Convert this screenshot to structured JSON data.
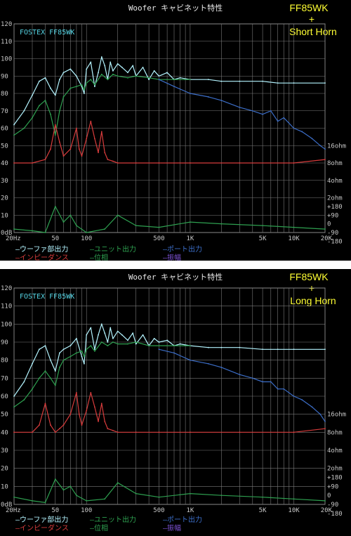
{
  "chart_data": [
    {
      "type": "line",
      "title": "Woofer キャビネット特性",
      "brand_label": "FOSTEX FF85WK",
      "badge": [
        "FF85WK",
        "+",
        "Short Horn"
      ],
      "xscale": "log",
      "xlim": [
        20,
        20000
      ],
      "ylim": [
        0,
        120
      ],
      "grid": true,
      "legend_position": "bottom",
      "x_ticks": [
        {
          "value": 20,
          "label": "20Hz"
        },
        {
          "value": 50,
          "label": "50"
        },
        {
          "value": 100,
          "label": "100"
        },
        {
          "value": 500,
          "label": "500"
        },
        {
          "value": 1000,
          "label": "1K"
        },
        {
          "value": 5000,
          "label": "5K"
        },
        {
          "value": 10000,
          "label": "10K"
        },
        {
          "value": 20000,
          "label": "20K"
        }
      ],
      "y_ticks_left": [
        {
          "value": 0,
          "label": "0dB"
        },
        {
          "value": 10,
          "label": "10"
        },
        {
          "value": 20,
          "label": "20"
        },
        {
          "value": 30,
          "label": "30"
        },
        {
          "value": 40,
          "label": "40"
        },
        {
          "value": 50,
          "label": "50"
        },
        {
          "value": 60,
          "label": "60"
        },
        {
          "value": 70,
          "label": "70"
        },
        {
          "value": 80,
          "label": "80"
        },
        {
          "value": 90,
          "label": "90"
        },
        {
          "value": 100,
          "label": "100"
        },
        {
          "value": 110,
          "label": "110"
        },
        {
          "value": 120,
          "label": "120"
        }
      ],
      "y_ticks_right": [
        {
          "value": 50,
          "label": "16ohm"
        },
        {
          "value": 40,
          "label": "8ohm"
        },
        {
          "value": 30,
          "label": "4ohm"
        },
        {
          "value": 20,
          "label": "2ohm"
        },
        {
          "value": 15,
          "label": "+180"
        },
        {
          "value": 10,
          "label": "+90"
        },
        {
          "value": 5,
          "label": "0"
        },
        {
          "value": 0,
          "label": "-90"
        },
        {
          "value": -5,
          "label": "-180"
        }
      ],
      "legend": [
        {
          "label": "ウーファ部出力",
          "color": "#b4f4ff"
        },
        {
          "label": "ユニット出力",
          "color": "#2ea050"
        },
        {
          "label": "ポート出力",
          "color": "#3c6ec8"
        },
        {
          "label": "インピーダンス",
          "color": "#d83c3c"
        },
        {
          "label": "位相",
          "color": "#2ea050"
        },
        {
          "label": "振幅",
          "color": "#7a50d0"
        }
      ],
      "series": [
        {
          "name": "ウーファ部出力",
          "color": "#b4f4ff",
          "x": [
            20,
            25,
            30,
            35,
            40,
            45,
            50,
            55,
            60,
            70,
            80,
            90,
            95,
            100,
            110,
            120,
            130,
            140,
            150,
            160,
            170,
            180,
            200,
            220,
            250,
            280,
            300,
            350,
            400,
            450,
            500,
            600,
            700,
            800,
            1000,
            1500,
            2000,
            3000,
            5000,
            7000,
            10000,
            20000
          ],
          "y": [
            62,
            70,
            79,
            87,
            89,
            83,
            79,
            88,
            92,
            94,
            90,
            84,
            80,
            94,
            98,
            84,
            92,
            101,
            96,
            88,
            98,
            93,
            97,
            95,
            92,
            96,
            90,
            95,
            88,
            93,
            90,
            92,
            88,
            89,
            88,
            88,
            87,
            87,
            87,
            86,
            86,
            86
          ]
        },
        {
          "name": "ユニット出力",
          "color": "#2ea050",
          "x": [
            20,
            25,
            30,
            35,
            40,
            45,
            50,
            55,
            60,
            70,
            80,
            90,
            95,
            100,
            110,
            120,
            140,
            160,
            180,
            200,
            250,
            300,
            400,
            500,
            700,
            1000
          ],
          "y": [
            56,
            60,
            66,
            73,
            76,
            68,
            56,
            70,
            78,
            83,
            84,
            85,
            82,
            86,
            88,
            85,
            91,
            88,
            91,
            90,
            89,
            90,
            89,
            88,
            88,
            88
          ]
        },
        {
          "name": "ポート出力",
          "color": "#3c6ec8",
          "x": [
            500,
            700,
            1000,
            1500,
            2000,
            3000,
            4000,
            5000,
            6000,
            7000,
            8000,
            10000,
            12000,
            15000,
            18000,
            20000
          ],
          "y": [
            88,
            84,
            80,
            78,
            76,
            72,
            70,
            68,
            70,
            64,
            66,
            60,
            58,
            54,
            50,
            48
          ]
        },
        {
          "name": "インピーダンス",
          "color": "#d83c3c",
          "x": [
            20,
            30,
            40,
            45,
            50,
            55,
            60,
            70,
            80,
            85,
            90,
            100,
            110,
            120,
            130,
            140,
            150,
            160,
            180,
            200,
            300,
            500,
            1000,
            3000,
            10000,
            20000
          ],
          "y": [
            40,
            40,
            42,
            48,
            62,
            52,
            44,
            48,
            60,
            48,
            44,
            54,
            64,
            54,
            46,
            58,
            46,
            42,
            41,
            40,
            40,
            40,
            40,
            40,
            40,
            42
          ]
        },
        {
          "name": "位相",
          "color": "#2ea050",
          "x": [
            20,
            30,
            40,
            50,
            60,
            70,
            80,
            100,
            150,
            200,
            300,
            500,
            1000,
            2000,
            5000,
            10000,
            20000
          ],
          "y": [
            2,
            1,
            0,
            15,
            6,
            10,
            4,
            0,
            2,
            10,
            4,
            3,
            6,
            5,
            4,
            3,
            2
          ]
        },
        {
          "name": "振幅",
          "color": "#7a50d0",
          "x": [],
          "y": []
        }
      ]
    },
    {
      "type": "line",
      "title": "Woofer キャビネット特性",
      "brand_label": "FOSTEX FF85WK",
      "badge": [
        "FF85WK",
        "+",
        "Long Horn"
      ],
      "xscale": "log",
      "xlim": [
        20,
        20000
      ],
      "ylim": [
        0,
        120
      ],
      "grid": true,
      "legend_position": "bottom",
      "x_ticks": [
        {
          "value": 20,
          "label": "20Hz"
        },
        {
          "value": 50,
          "label": "50"
        },
        {
          "value": 100,
          "label": "100"
        },
        {
          "value": 500,
          "label": "500"
        },
        {
          "value": 1000,
          "label": "1K"
        },
        {
          "value": 5000,
          "label": "5K"
        },
        {
          "value": 10000,
          "label": "10K"
        },
        {
          "value": 20000,
          "label": "20K"
        }
      ],
      "y_ticks_left": [
        {
          "value": 0,
          "label": "0dB"
        },
        {
          "value": 10,
          "label": "10"
        },
        {
          "value": 20,
          "label": "20"
        },
        {
          "value": 30,
          "label": "30"
        },
        {
          "value": 40,
          "label": "40"
        },
        {
          "value": 50,
          "label": "50"
        },
        {
          "value": 60,
          "label": "60"
        },
        {
          "value": 70,
          "label": "70"
        },
        {
          "value": 80,
          "label": "80"
        },
        {
          "value": 90,
          "label": "90"
        },
        {
          "value": 100,
          "label": "100"
        },
        {
          "value": 110,
          "label": "110"
        },
        {
          "value": 120,
          "label": "120"
        }
      ],
      "y_ticks_right": [
        {
          "value": 50,
          "label": "16ohm"
        },
        {
          "value": 40,
          "label": "8ohm"
        },
        {
          "value": 30,
          "label": "4ohm"
        },
        {
          "value": 20,
          "label": "2ohm"
        },
        {
          "value": 15,
          "label": "+180"
        },
        {
          "value": 10,
          "label": "+90"
        },
        {
          "value": 5,
          "label": "0"
        },
        {
          "value": 0,
          "label": "-90"
        },
        {
          "value": -5,
          "label": "-180"
        }
      ],
      "legend": [
        {
          "label": "ウーファ部出力",
          "color": "#b4f4ff"
        },
        {
          "label": "ユニット出力",
          "color": "#2ea050"
        },
        {
          "label": "ポート出力",
          "color": "#3c6ec8"
        },
        {
          "label": "インピーダンス",
          "color": "#d83c3c"
        },
        {
          "label": "位相",
          "color": "#2ea050"
        },
        {
          "label": "振幅",
          "color": "#7a50d0"
        }
      ],
      "series": [
        {
          "name": "ウーファ部出力",
          "color": "#b4f4ff",
          "x": [
            20,
            25,
            30,
            35,
            40,
            45,
            50,
            55,
            60,
            70,
            80,
            90,
            95,
            100,
            110,
            120,
            130,
            140,
            150,
            160,
            170,
            180,
            200,
            220,
            250,
            280,
            300,
            350,
            400,
            450,
            500,
            600,
            700,
            800,
            1000,
            1500,
            2000,
            3000,
            5000,
            7000,
            10000,
            20000
          ],
          "y": [
            60,
            68,
            78,
            86,
            88,
            80,
            74,
            84,
            86,
            88,
            92,
            82,
            78,
            94,
            98,
            86,
            94,
            100,
            95,
            90,
            98,
            92,
            96,
            94,
            91,
            95,
            89,
            94,
            88,
            92,
            90,
            91,
            88,
            89,
            88,
            87,
            87,
            87,
            86,
            86,
            86,
            86
          ]
        },
        {
          "name": "ユニット出力",
          "color": "#2ea050",
          "x": [
            20,
            25,
            30,
            35,
            40,
            45,
            50,
            55,
            60,
            70,
            80,
            90,
            95,
            100,
            110,
            120,
            140,
            160,
            180,
            200,
            250,
            300,
            400,
            500,
            700,
            1000
          ],
          "y": [
            54,
            58,
            64,
            70,
            74,
            70,
            66,
            76,
            80,
            82,
            84,
            85,
            82,
            86,
            88,
            85,
            90,
            88,
            90,
            89,
            89,
            90,
            88,
            88,
            88,
            88
          ]
        },
        {
          "name": "ポート出力",
          "color": "#3c6ec8",
          "x": [
            500,
            700,
            1000,
            1500,
            2000,
            3000,
            4000,
            5000,
            6000,
            7000,
            8000,
            10000,
            12000,
            15000,
            18000,
            20000
          ],
          "y": [
            86,
            84,
            80,
            78,
            76,
            72,
            70,
            68,
            68,
            64,
            64,
            60,
            58,
            54,
            50,
            46
          ]
        },
        {
          "name": "インピーダンス",
          "color": "#d83c3c",
          "x": [
            20,
            30,
            35,
            40,
            45,
            50,
            55,
            60,
            70,
            80,
            85,
            90,
            100,
            110,
            120,
            130,
            140,
            150,
            160,
            180,
            200,
            300,
            500,
            1000,
            3000,
            10000,
            20000
          ],
          "y": [
            40,
            40,
            44,
            56,
            44,
            40,
            42,
            44,
            50,
            62,
            50,
            44,
            52,
            62,
            54,
            46,
            56,
            46,
            42,
            41,
            40,
            40,
            40,
            40,
            40,
            40,
            42
          ]
        },
        {
          "name": "位相",
          "color": "#2ea050",
          "x": [
            20,
            30,
            40,
            50,
            60,
            70,
            80,
            100,
            150,
            200,
            300,
            500,
            1000,
            2000,
            5000,
            10000,
            20000
          ],
          "y": [
            4,
            2,
            1,
            14,
            8,
            10,
            5,
            2,
            3,
            12,
            6,
            4,
            6,
            5,
            4,
            3,
            2
          ]
        },
        {
          "name": "振幅",
          "color": "#7a50d0",
          "x": [],
          "y": []
        }
      ]
    }
  ]
}
